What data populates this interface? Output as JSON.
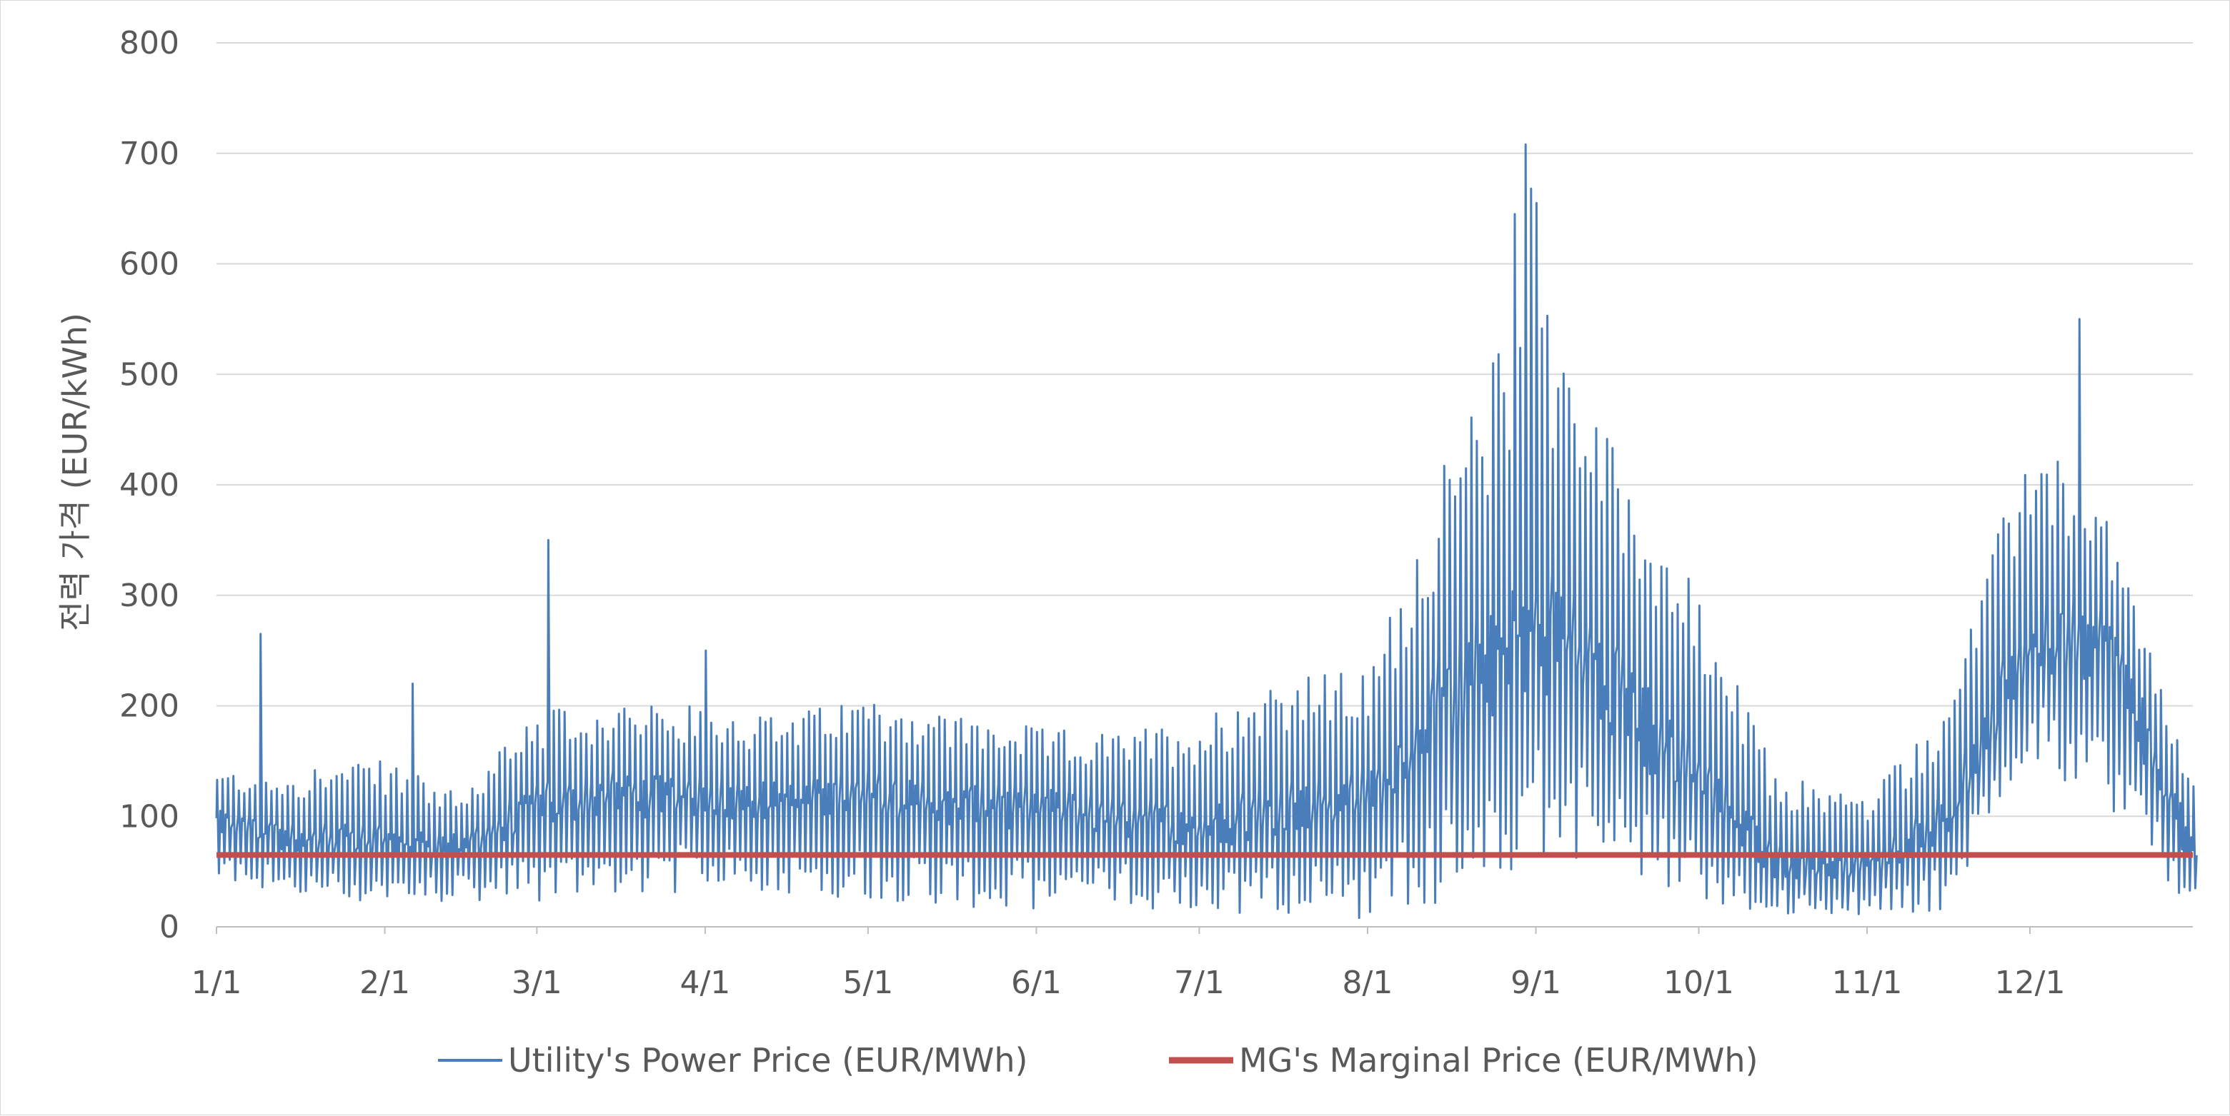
{
  "chart_data": {
    "type": "line",
    "title": "",
    "xlabel": "",
    "ylabel": "전력 가격 (EUR/kWh)",
    "ylim": [
      0,
      800
    ],
    "yticks": [
      "0",
      "100",
      "200",
      "300",
      "400",
      "500",
      "600",
      "700",
      "800"
    ],
    "xlim": [
      1,
      365
    ],
    "xticks": [
      {
        "label": "1/1",
        "day": 1
      },
      {
        "label": "2/1",
        "day": 32
      },
      {
        "label": "3/1",
        "day": 60
      },
      {
        "label": "4/1",
        "day": 91
      },
      {
        "label": "5/1",
        "day": 121
      },
      {
        "label": "6/1",
        "day": 152
      },
      {
        "label": "7/1",
        "day": 182
      },
      {
        "label": "8/1",
        "day": 213
      },
      {
        "label": "9/1",
        "day": 244
      },
      {
        "label": "10/1",
        "day": 274
      },
      {
        "label": "11/1",
        "day": 305
      },
      {
        "label": "12/1",
        "day": 335
      }
    ],
    "grid": true,
    "legend_position": "bottom",
    "series": [
      {
        "name": "Utility's Power Price (EUR/MWh)",
        "color": "#4a7ebb",
        "style": "daily-range",
        "profile": [
          {
            "label": "1/1",
            "low": 40,
            "mid": 95,
            "high": 140
          },
          {
            "label": "1/15",
            "low": 25,
            "mid": 80,
            "high": 145
          },
          {
            "label": "2/1",
            "low": 20,
            "mid": 80,
            "high": 150
          },
          {
            "label": "2/15",
            "low": 20,
            "mid": 75,
            "high": 120
          },
          {
            "label": "3/1",
            "low": 20,
            "mid": 110,
            "high": 200
          },
          {
            "label": "3/15",
            "low": 30,
            "mid": 120,
            "high": 200
          },
          {
            "label": "4/1",
            "low": 30,
            "mid": 120,
            "high": 200
          },
          {
            "label": "4/15",
            "low": 30,
            "mid": 115,
            "high": 190
          },
          {
            "label": "5/1",
            "low": 25,
            "mid": 120,
            "high": 210
          },
          {
            "label": "5/15",
            "low": 20,
            "mid": 110,
            "high": 195
          },
          {
            "label": "6/1",
            "low": 10,
            "mid": 110,
            "high": 180
          },
          {
            "label": "6/15",
            "low": 20,
            "mid": 100,
            "high": 175
          },
          {
            "label": "7/1",
            "low": 10,
            "mid": 90,
            "high": 190
          },
          {
            "label": "7/15",
            "low": 10,
            "mid": 110,
            "high": 230
          },
          {
            "label": "8/1",
            "low": 5,
            "mid": 120,
            "high": 230
          },
          {
            "label": "8/15",
            "low": 20,
            "mid": 200,
            "high": 420
          },
          {
            "label": "9/1",
            "low": 60,
            "mid": 280,
            "high": 600
          },
          {
            "label": "9/15",
            "low": 50,
            "mid": 220,
            "high": 440
          },
          {
            "label": "10/1",
            "low": 20,
            "mid": 130,
            "high": 300
          },
          {
            "label": "10/15",
            "low": 10,
            "mid": 60,
            "high": 140
          },
          {
            "label": "11/1",
            "low": 10,
            "mid": 55,
            "high": 120
          },
          {
            "label": "11/15",
            "low": 15,
            "mid": 100,
            "high": 200
          },
          {
            "label": "12/1",
            "low": 150,
            "mid": 260,
            "high": 450
          },
          {
            "label": "12/15",
            "low": 100,
            "mid": 260,
            "high": 380
          },
          {
            "label": "12/31",
            "low": 10,
            "mid": 60,
            "high": 130
          }
        ],
        "peaks": [
          {
            "label": "1/9",
            "value": 265
          },
          {
            "label": "2/6",
            "value": 220
          },
          {
            "label": "3/3",
            "value": 350
          },
          {
            "label": "4/1",
            "value": 250
          },
          {
            "label": "8/28",
            "value": 645
          },
          {
            "label": "8/30",
            "value": 708
          },
          {
            "label": "8/31",
            "value": 668
          },
          {
            "label": "9/1",
            "value": 655
          },
          {
            "label": "12/10",
            "value": 550
          }
        ]
      },
      {
        "name": "MG's Marginal Price (EUR/MWh)",
        "color": "#c0504d",
        "style": "constant",
        "value": 65
      }
    ]
  }
}
